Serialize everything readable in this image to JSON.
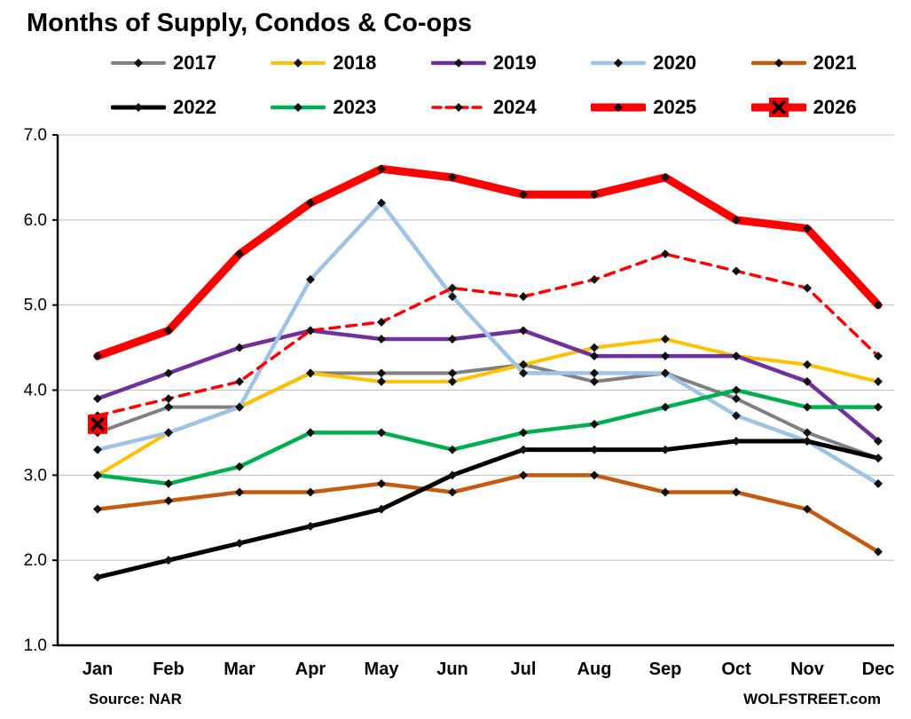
{
  "title": "Months of Supply, Condos & Co-ops",
  "footer": {
    "source": "Source: NAR",
    "site": "WOLFSTREET.com"
  },
  "chart_data": {
    "type": "line",
    "title": "Months of Supply, Condos & Co-ops",
    "x": [
      "Jan",
      "Feb",
      "Mar",
      "Apr",
      "May",
      "Jun",
      "Jul",
      "Aug",
      "Sep",
      "Oct",
      "Nov",
      "Dec"
    ],
    "ylim": [
      1.0,
      7.0
    ],
    "yticks": [
      1,
      2,
      3,
      4,
      5,
      6,
      7
    ],
    "grid": true,
    "legend_position": "top",
    "legend_rows": [
      [
        "2017",
        "2018",
        "2019",
        "2020",
        "2021"
      ],
      [
        "2022",
        "2023",
        "2024",
        "2025",
        "2026"
      ]
    ],
    "series": [
      {
        "name": "2017",
        "color": "#808080",
        "line_width": 4,
        "style": "solid",
        "marker": "diamond",
        "values": [
          3.5,
          3.8,
          3.8,
          4.2,
          4.2,
          4.2,
          4.3,
          4.1,
          4.2,
          3.9,
          3.5,
          3.2
        ]
      },
      {
        "name": "2018",
        "color": "#FFC000",
        "line_width": 4,
        "style": "solid",
        "marker": "diamond",
        "values": [
          3.0,
          3.5,
          3.8,
          4.2,
          4.1,
          4.1,
          4.3,
          4.5,
          4.6,
          4.4,
          4.3,
          4.1
        ]
      },
      {
        "name": "2019",
        "color": "#7030A0",
        "line_width": 4.5,
        "style": "solid",
        "marker": "diamond",
        "values": [
          3.9,
          4.2,
          4.5,
          4.7,
          4.6,
          4.6,
          4.7,
          4.4,
          4.4,
          4.4,
          4.1,
          3.4
        ]
      },
      {
        "name": "2020",
        "color": "#9DC3E6",
        "line_width": 4.5,
        "style": "solid",
        "marker": "diamond",
        "values": [
          3.3,
          3.5,
          3.8,
          5.3,
          6.2,
          5.1,
          4.2,
          4.2,
          4.2,
          3.7,
          3.4,
          2.9
        ]
      },
      {
        "name": "2021",
        "color": "#C55A11",
        "line_width": 4.5,
        "style": "solid",
        "marker": "diamond",
        "values": [
          2.6,
          2.7,
          2.8,
          2.8,
          2.9,
          2.8,
          3.0,
          3.0,
          2.8,
          2.8,
          2.6,
          2.1
        ]
      },
      {
        "name": "2022",
        "color": "#000000",
        "line_width": 5,
        "style": "solid",
        "marker": "diamond",
        "values": [
          1.8,
          2.0,
          2.2,
          2.4,
          2.6,
          3.0,
          3.3,
          3.3,
          3.3,
          3.4,
          3.4,
          3.2
        ]
      },
      {
        "name": "2023",
        "color": "#00B050",
        "line_width": 4.5,
        "style": "solid",
        "marker": "diamond",
        "values": [
          3.0,
          2.9,
          3.1,
          3.5,
          3.5,
          3.3,
          3.5,
          3.6,
          3.8,
          4.0,
          3.8,
          3.8
        ]
      },
      {
        "name": "2024",
        "color": "#FF0000",
        "line_width": 3.5,
        "style": "dashed",
        "marker": "diamond",
        "values": [
          3.7,
          3.9,
          4.1,
          4.7,
          4.8,
          5.2,
          5.1,
          5.3,
          5.6,
          5.4,
          5.2,
          4.4
        ]
      },
      {
        "name": "2025",
        "color": "#FF0000",
        "line_width": 9,
        "style": "solid",
        "marker": "diamond",
        "values": [
          4.4,
          4.7,
          5.6,
          6.2,
          6.6,
          6.5,
          6.3,
          6.3,
          6.5,
          6.0,
          5.9,
          5.0
        ]
      },
      {
        "name": "2026",
        "color": "#FF0000",
        "line_width": 9,
        "style": "solid",
        "marker": "x-square",
        "values": [
          3.6,
          null,
          null,
          null,
          null,
          null,
          null,
          null,
          null,
          null,
          null,
          null
        ]
      }
    ]
  }
}
